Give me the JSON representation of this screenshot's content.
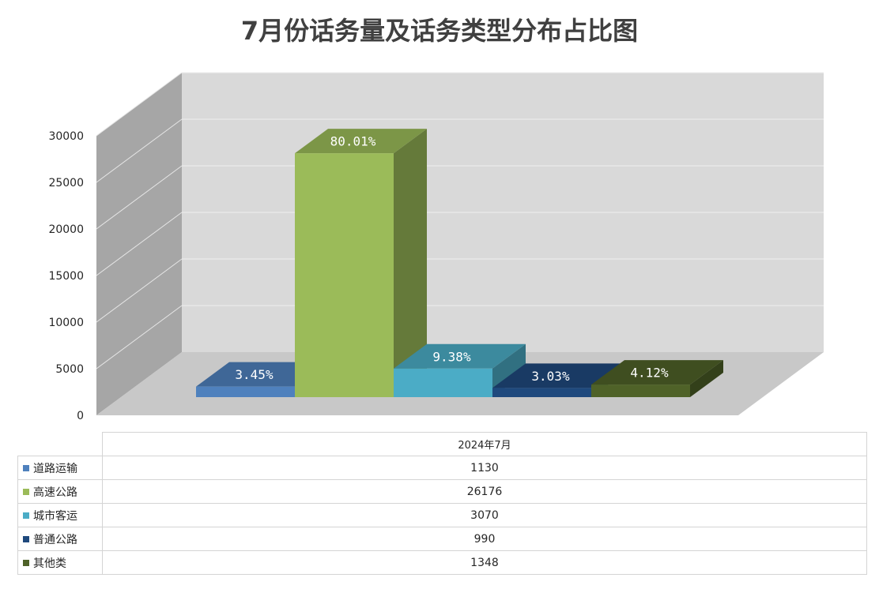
{
  "title": "7月份话务量及话务类型分布占比图",
  "chart_data": {
    "type": "bar",
    "title": "7月份话务量及话务类型分布占比图",
    "categories": [
      "2024年7月"
    ],
    "ylim": [
      0,
      30000
    ],
    "yticks": [
      0,
      5000,
      10000,
      15000,
      20000,
      25000,
      30000
    ],
    "grid": true,
    "legend": "table-bottom",
    "series": [
      {
        "name": "道路运输",
        "values": [
          1130
        ],
        "label": "3.45%",
        "color": "#4f81bd"
      },
      {
        "name": "高速公路",
        "values": [
          26176
        ],
        "label": "80.01%",
        "color": "#9bbb59"
      },
      {
        "name": "城市客运",
        "values": [
          3070
        ],
        "label": "9.38%",
        "color": "#4bacc6"
      },
      {
        "name": "普通公路",
        "values": [
          990
        ],
        "label": "3.03%",
        "color": "#1f497d"
      },
      {
        "name": "其他类",
        "values": [
          1348
        ],
        "label": "4.12%",
        "color": "#4f6228"
      }
    ]
  }
}
